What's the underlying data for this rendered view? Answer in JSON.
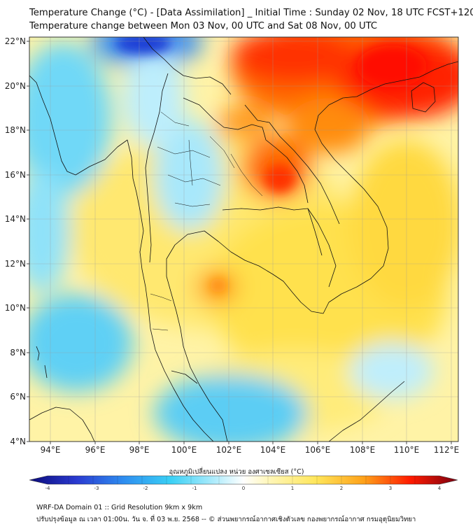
{
  "title": {
    "line1": "Temperature Change (°C) - [Data Assimilation] _ Initial Time : Sunday 02 Nov, 18 UTC FCST+120",
    "line2": "Temperature change between Mon 03 Nov, 00 UTC and Sat 08 Nov, 00 UTC"
  },
  "map": {
    "lat_labels": [
      "22°N",
      "20°N",
      "18°N",
      "16°N",
      "14°N",
      "12°N",
      "10°N",
      "8°N",
      "6°N",
      "4°N"
    ],
    "lon_labels": [
      "94°E",
      "96°E",
      "98°E",
      "100°E",
      "102°E",
      "104°E",
      "106°E",
      "108°E",
      "110°E",
      "112°E"
    ]
  },
  "colorbar": {
    "title": "อุณหภูมิเปลี่ยนแปลง หน่วย องศาเซลเซียส (°C)",
    "ticks": [
      "-4",
      "-3",
      "-2",
      "-1",
      "0",
      "1",
      "2",
      "3",
      "4"
    ],
    "colors": {
      "low": "#1a1a9c",
      "mid_low": "#3ad0f5",
      "neutral": "#ffffff",
      "mid_high": "#ffe65a",
      "high": "#ff1a00",
      "max": "#7a0010"
    }
  },
  "footer": {
    "line1": "WRF-DA Domain 01 :: Grid Resolution 9km x 9km",
    "line2": "ปรับปรุงข้อมูล ณ เวลา 01:00น. วัน จ. ที่ 03 พ.ย. 2568 -- © ส่วนพยากรณ์อากาศเชิงตัวเลข กองพยากรณ์อากาศ กรมอุตุนิยมวิทยา"
  }
}
